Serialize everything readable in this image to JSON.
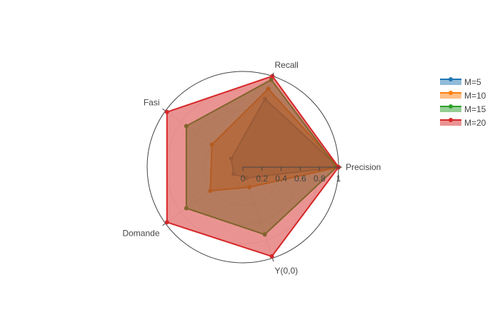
{
  "chart_data": {
    "type": "radar",
    "axes": [
      "Precision",
      "Recall",
      "Fasi",
      "Domande",
      "Y(0,0)"
    ],
    "radial_ticks": [
      "0",
      "0.2",
      "0.4",
      "0.6",
      "0.8",
      "1"
    ],
    "range": [
      0,
      1
    ],
    "grid": true,
    "legend_position": "top-right",
    "series": [
      {
        "name": "M=5",
        "color": "#1f77b4",
        "values": [
          1.0,
          0.75,
          0.15,
          0.12,
          0.12
        ]
      },
      {
        "name": "M=10",
        "color": "#ff7f0e",
        "values": [
          1.0,
          0.86,
          0.4,
          0.42,
          0.22
        ]
      },
      {
        "name": "M=15",
        "color": "#2ca02c",
        "values": [
          0.98,
          0.96,
          0.73,
          0.73,
          0.74
        ]
      },
      {
        "name": "M=20",
        "color": "#d62728",
        "values": [
          1.0,
          1.0,
          0.98,
          0.98,
          0.98
        ]
      }
    ]
  }
}
